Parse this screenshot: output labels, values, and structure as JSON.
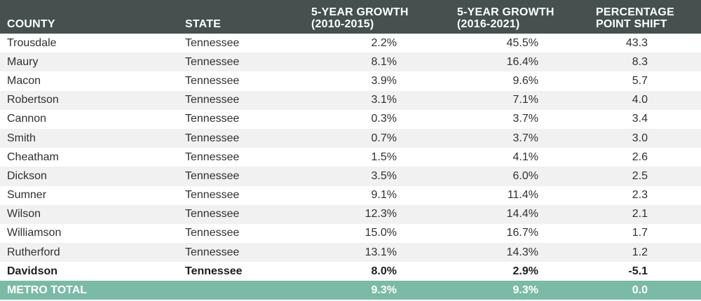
{
  "headers": {
    "county": "COUNTY",
    "state": "STATE",
    "growth1": [
      "5-YEAR GROWTH",
      "(2010-2015)"
    ],
    "growth2": [
      "5-YEAR GROWTH",
      "(2016-2021)"
    ],
    "shift": [
      "PERCENTAGE",
      "POINT SHIFT"
    ]
  },
  "rows": [
    {
      "county": "Trousdale",
      "state": "Tennessee",
      "g1": "2.2%",
      "g2": "45.5%",
      "shift": "43.3"
    },
    {
      "county": "Maury",
      "state": "Tennessee",
      "g1": "8.1%",
      "g2": "16.4%",
      "shift": "8.3"
    },
    {
      "county": "Macon",
      "state": "Tennessee",
      "g1": "3.9%",
      "g2": "9.6%",
      "shift": "5.7"
    },
    {
      "county": "Robertson",
      "state": "Tennessee",
      "g1": "3.1%",
      "g2": "7.1%",
      "shift": "4.0"
    },
    {
      "county": "Cannon",
      "state": "Tennessee",
      "g1": "0.3%",
      "g2": "3.7%",
      "shift": "3.4"
    },
    {
      "county": "Smith",
      "state": "Tennessee",
      "g1": "0.7%",
      "g2": "3.7%",
      "shift": "3.0"
    },
    {
      "county": "Cheatham",
      "state": "Tennessee",
      "g1": "1.5%",
      "g2": "4.1%",
      "shift": "2.6"
    },
    {
      "county": "Dickson",
      "state": "Tennessee",
      "g1": "3.5%",
      "g2": "6.0%",
      "shift": "2.5"
    },
    {
      "county": "Sumner",
      "state": "Tennessee",
      "g1": "9.1%",
      "g2": "11.4%",
      "shift": "2.3"
    },
    {
      "county": "Wilson",
      "state": "Tennessee",
      "g1": "12.3%",
      "g2": "14.4%",
      "shift": "2.1"
    },
    {
      "county": "Williamson",
      "state": "Tennessee",
      "g1": "15.0%",
      "g2": "16.7%",
      "shift": "1.7"
    },
    {
      "county": "Rutherford",
      "state": "Tennessee",
      "g1": "13.1%",
      "g2": "14.3%",
      "shift": "1.2"
    },
    {
      "county": "Davidson",
      "state": "Tennessee",
      "g1": "8.0%",
      "g2": "2.9%",
      "shift": "-5.1",
      "highlight": true
    }
  ],
  "total": {
    "label": "METRO TOTAL",
    "state": "",
    "g1": "9.3%",
    "g2": "9.3%",
    "shift": "0.0"
  },
  "colors": {
    "header_bg": "#45504f",
    "total_bg": "#7bbaa6",
    "stripe": "#f1f1f1"
  }
}
